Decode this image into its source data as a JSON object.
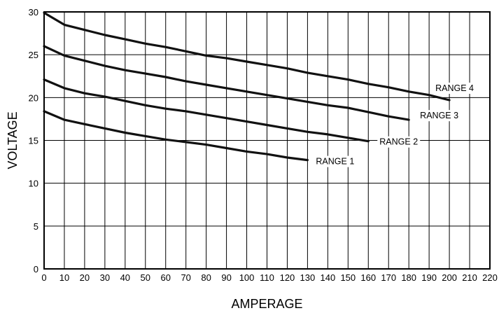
{
  "chart_data": {
    "type": "line",
    "title": "",
    "xlabel": "AMPERAGE",
    "ylabel": "VOLTAGE",
    "xlim": [
      0,
      220
    ],
    "ylim": [
      0,
      30
    ],
    "grid": true,
    "x_ticks": [
      0,
      10,
      20,
      30,
      40,
      50,
      60,
      70,
      80,
      90,
      100,
      110,
      120,
      130,
      140,
      150,
      160,
      170,
      180,
      190,
      200,
      210,
      220
    ],
    "y_ticks": [
      0,
      5,
      10,
      15,
      20,
      25,
      30
    ],
    "series": [
      {
        "name": "RANGE 1",
        "points": [
          [
            0,
            18.4
          ],
          [
            10,
            17.4
          ],
          [
            20,
            16.9
          ],
          [
            30,
            16.4
          ],
          [
            40,
            15.9
          ],
          [
            50,
            15.5
          ],
          [
            60,
            15.1
          ],
          [
            70,
            14.8
          ],
          [
            80,
            14.5
          ],
          [
            90,
            14.1
          ],
          [
            100,
            13.7
          ],
          [
            110,
            13.4
          ],
          [
            120,
            13.0
          ],
          [
            130,
            12.7
          ]
        ]
      },
      {
        "name": "RANGE 2",
        "points": [
          [
            0,
            22.1
          ],
          [
            10,
            21.1
          ],
          [
            20,
            20.5
          ],
          [
            30,
            20.1
          ],
          [
            40,
            19.6
          ],
          [
            50,
            19.1
          ],
          [
            60,
            18.7
          ],
          [
            70,
            18.4
          ],
          [
            80,
            18.0
          ],
          [
            90,
            17.6
          ],
          [
            100,
            17.2
          ],
          [
            110,
            16.8
          ],
          [
            120,
            16.4
          ],
          [
            130,
            16.0
          ],
          [
            140,
            15.7
          ],
          [
            150,
            15.3
          ],
          [
            160,
            14.9
          ]
        ]
      },
      {
        "name": "RANGE 3",
        "points": [
          [
            0,
            26.0
          ],
          [
            10,
            24.9
          ],
          [
            20,
            24.3
          ],
          [
            30,
            23.7
          ],
          [
            40,
            23.2
          ],
          [
            50,
            22.8
          ],
          [
            60,
            22.4
          ],
          [
            70,
            21.9
          ],
          [
            80,
            21.5
          ],
          [
            90,
            21.1
          ],
          [
            100,
            20.7
          ],
          [
            110,
            20.3
          ],
          [
            120,
            19.9
          ],
          [
            130,
            19.5
          ],
          [
            140,
            19.1
          ],
          [
            150,
            18.8
          ],
          [
            160,
            18.3
          ],
          [
            170,
            17.8
          ],
          [
            180,
            17.4
          ]
        ]
      },
      {
        "name": "RANGE 4",
        "points": [
          [
            0,
            29.9
          ],
          [
            10,
            28.5
          ],
          [
            20,
            27.9
          ],
          [
            30,
            27.3
          ],
          [
            40,
            26.8
          ],
          [
            50,
            26.3
          ],
          [
            60,
            25.9
          ],
          [
            70,
            25.4
          ],
          [
            80,
            24.9
          ],
          [
            90,
            24.6
          ],
          [
            100,
            24.2
          ],
          [
            110,
            23.8
          ],
          [
            120,
            23.4
          ],
          [
            130,
            22.9
          ],
          [
            140,
            22.5
          ],
          [
            150,
            22.1
          ],
          [
            160,
            21.6
          ],
          [
            170,
            21.2
          ],
          [
            180,
            20.7
          ],
          [
            190,
            20.3
          ],
          [
            200,
            19.7
          ]
        ]
      }
    ]
  }
}
